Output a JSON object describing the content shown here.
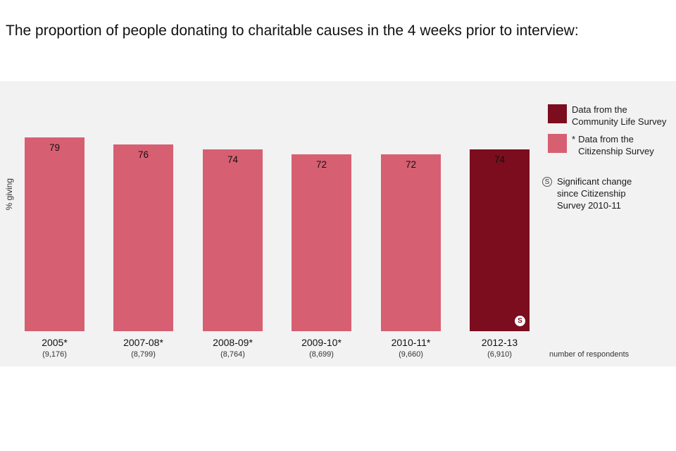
{
  "page": {
    "title": "The proportion of people donating to charitable causes in the 4 weeks prior to interview:",
    "footnote": "number of respondents"
  },
  "chart_data": {
    "type": "bar",
    "title": "The proportion of people donating to charitable causes in the 4 weeks prior to interview:",
    "xlabel": "",
    "ylabel": "% giving",
    "ylim": [
      0,
      102
    ],
    "grid": false,
    "legend_position": "right",
    "categories": [
      "2005*",
      "2007-08*",
      "2008-09*",
      "2009-10*",
      "2010-11*",
      "2012-13"
    ],
    "values": [
      79,
      76,
      74,
      72,
      72,
      74
    ],
    "respondents": [
      "(9,176)",
      "(8,799)",
      "(8,764)",
      "(8,699)",
      "(9,660)",
      "(6,910)"
    ],
    "bar_colors": [
      "#d75f72",
      "#d75f72",
      "#d75f72",
      "#d75f72",
      "#d75f72",
      "#7c0d1e"
    ],
    "significant_badge": {
      "bar_index": 5,
      "symbol": "S"
    }
  },
  "legend": {
    "community_life": {
      "color": "#7c0d1e",
      "label": "Data from the\nCommunity Life Survey"
    },
    "citizenship": {
      "color": "#d75f72",
      "marker": "*",
      "label": "Data from the\nCitizenship Survey"
    },
    "significant": {
      "symbol": "S",
      "label": "Significant change\nsince Citizenship\nSurvey 2010-11"
    }
  },
  "colors": {
    "page_background": "#ffffff",
    "panel_background": "#f2f2f2",
    "citizenship_pink": "#d75f72",
    "community_life_red": "#7c0d1e"
  }
}
